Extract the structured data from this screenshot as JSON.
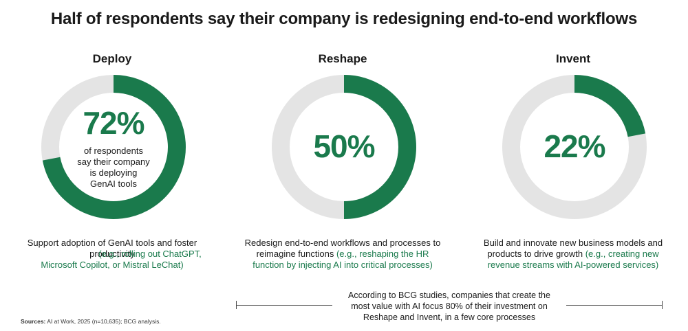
{
  "title": "Half of respondents say their company is redesigning end-to-end workflows",
  "colors": {
    "accent": "#1a7a4c",
    "track": "#e4e4e4"
  },
  "chart_data": [
    {
      "type": "pie",
      "title": "Deploy",
      "values": [
        72,
        28
      ],
      "label": "72%",
      "caption": [
        "of respondents",
        "say their company",
        "is deploying",
        "GenAI tools"
      ],
      "description": "Support adoption of GenAI tools and foster productivity",
      "example_lines": [
        "(e.g., rolling out ChatGPT,",
        "Microsoft Copilot, or Mistral LeChat)"
      ]
    },
    {
      "type": "pie",
      "title": "Reshape",
      "values": [
        50,
        50
      ],
      "label": "50%",
      "description_lines": [
        "Redesign end-to-end workflows and processes to",
        "reimagine functions"
      ],
      "example_lines": [
        "(e.g., reshaping the HR",
        "function by injecting AI into critical processes)"
      ]
    },
    {
      "type": "pie",
      "title": "Invent",
      "values": [
        22,
        78
      ],
      "label": "22%",
      "description_lines": [
        "Build and innovate new business models and",
        "products to drive growth"
      ],
      "example_lines": [
        "(e.g., creating new",
        "revenue streams with AI-powered services)"
      ]
    }
  ],
  "footnote": {
    "lines": [
      "According to BCG studies, companies that create the",
      "most value with AI focus 80% of their investment on",
      "Reshape and Invent, in a few core processes"
    ]
  },
  "sources": {
    "label": "Sources:",
    "text": "AI at Work, 2025 (n=10,635); BCG analysis."
  }
}
